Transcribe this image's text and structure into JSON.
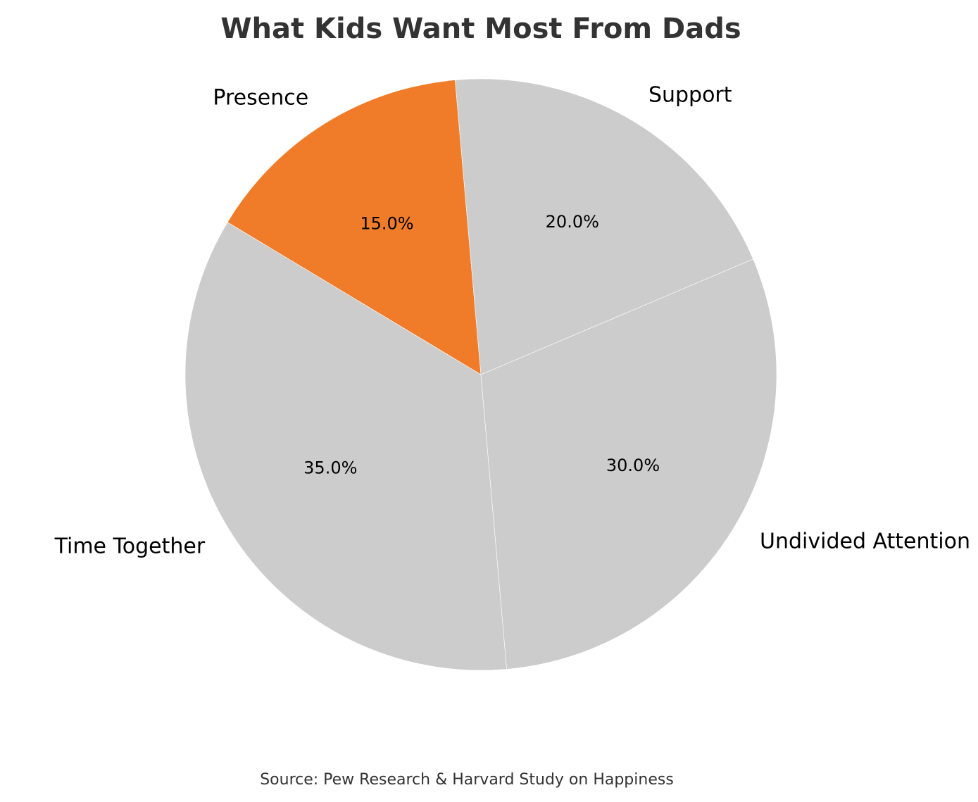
{
  "chart_data": {
    "type": "pie",
    "title": "What Kids Want Most From Dads",
    "source": "Source: Pew Research & Harvard Study on Happiness",
    "start_angle_deg": 95,
    "direction": "counterclockwise",
    "slices": [
      {
        "label": "Presence",
        "value": 15.0,
        "pct_label": "15.0%",
        "color": "#F07C2A"
      },
      {
        "label": "Time Together",
        "value": 35.0,
        "pct_label": "35.0%",
        "color": "#CCCCCC"
      },
      {
        "label": "Undivided Attention",
        "value": 30.0,
        "pct_label": "30.0%",
        "color": "#CCCCCC"
      },
      {
        "label": "Support",
        "value": 20.0,
        "pct_label": "20.0%",
        "color": "#CCCCCC"
      }
    ]
  }
}
